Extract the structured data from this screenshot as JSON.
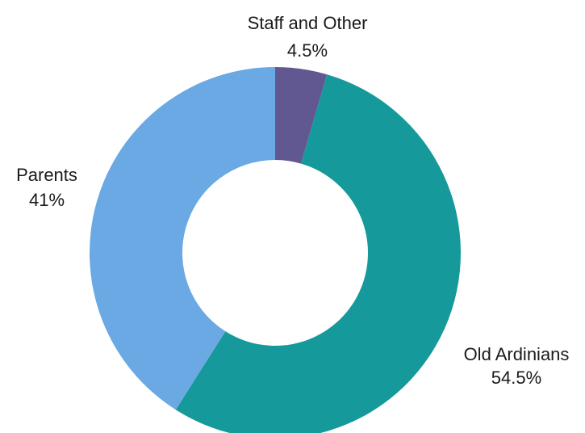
{
  "chart_data": {
    "type": "pie",
    "donut": true,
    "slices": [
      {
        "label": "Staff and Other",
        "value": 4.5,
        "value_text": "4.5%",
        "color": "#625891"
      },
      {
        "label": "Old Ardinians",
        "value": 54.5,
        "value_text": "54.5%",
        "color": "#16999a"
      },
      {
        "label": "Parents",
        "value": 41,
        "value_text": "41%",
        "color": "#6aa9e3"
      }
    ],
    "start": "12 o'clock",
    "direction": "clockwise",
    "legend": "none"
  }
}
